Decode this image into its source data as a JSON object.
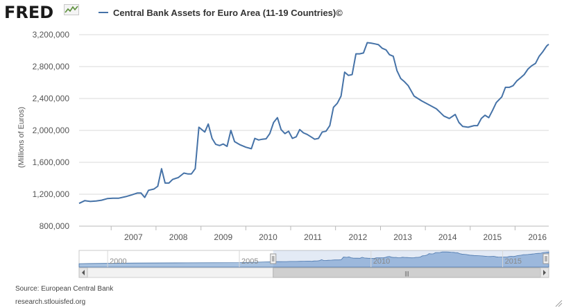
{
  "brand": {
    "logo_text": "FRED",
    "logo_icon": "fred-graph-icon"
  },
  "chart_data": {
    "type": "line",
    "title": "",
    "series": [
      {
        "name": "Central Bank Assets for Euro Area (11-19 Countries)©",
        "color": "#4572a7",
        "points": [
          [
            "2006-04-15",
            1085000
          ],
          [
            "2006-06-01",
            1120000
          ],
          [
            "2006-07-15",
            1110000
          ],
          [
            "2006-09-01",
            1115000
          ],
          [
            "2006-10-15",
            1125000
          ],
          [
            "2006-12-01",
            1145000
          ],
          [
            "2007-01-15",
            1150000
          ],
          [
            "2007-03-01",
            1150000
          ],
          [
            "2007-05-01",
            1170000
          ],
          [
            "2007-06-15",
            1190000
          ],
          [
            "2007-08-01",
            1215000
          ],
          [
            "2007-09-01",
            1215000
          ],
          [
            "2007-10-01",
            1160000
          ],
          [
            "2007-11-01",
            1250000
          ],
          [
            "2007-12-15",
            1265000
          ],
          [
            "2008-01-15",
            1300000
          ],
          [
            "2008-02-15",
            1520000
          ],
          [
            "2008-03-15",
            1340000
          ],
          [
            "2008-04-15",
            1340000
          ],
          [
            "2008-05-15",
            1385000
          ],
          [
            "2008-07-01",
            1410000
          ],
          [
            "2008-08-15",
            1465000
          ],
          [
            "2008-09-15",
            1455000
          ],
          [
            "2008-10-15",
            1455000
          ],
          [
            "2008-11-15",
            1520000
          ],
          [
            "2008-12-15",
            2040000
          ],
          [
            "2009-02-01",
            1980000
          ],
          [
            "2009-03-01",
            2080000
          ],
          [
            "2009-04-01",
            1900000
          ],
          [
            "2009-05-01",
            1825000
          ],
          [
            "2009-06-01",
            1810000
          ],
          [
            "2009-07-01",
            1830000
          ],
          [
            "2009-08-01",
            1800000
          ],
          [
            "2009-09-01",
            2000000
          ],
          [
            "2009-10-01",
            1860000
          ],
          [
            "2009-11-15",
            1820000
          ],
          [
            "2010-01-01",
            1790000
          ],
          [
            "2010-02-15",
            1770000
          ],
          [
            "2010-03-15",
            1900000
          ],
          [
            "2010-04-15",
            1880000
          ],
          [
            "2010-05-15",
            1890000
          ],
          [
            "2010-06-15",
            1895000
          ],
          [
            "2010-07-15",
            1960000
          ],
          [
            "2010-08-15",
            2100000
          ],
          [
            "2010-09-15",
            2160000
          ],
          [
            "2010-10-15",
            2010000
          ],
          [
            "2010-11-15",
            1960000
          ],
          [
            "2010-12-15",
            1990000
          ],
          [
            "2011-01-15",
            1900000
          ],
          [
            "2011-02-15",
            1920000
          ],
          [
            "2011-03-15",
            2010000
          ],
          [
            "2011-04-15",
            1970000
          ],
          [
            "2011-05-15",
            1950000
          ],
          [
            "2011-06-15",
            1920000
          ],
          [
            "2011-07-15",
            1890000
          ],
          [
            "2011-08-15",
            1900000
          ],
          [
            "2011-09-15",
            1980000
          ],
          [
            "2011-10-15",
            1990000
          ],
          [
            "2011-11-15",
            2060000
          ],
          [
            "2011-12-15",
            2290000
          ],
          [
            "2012-01-15",
            2340000
          ],
          [
            "2012-02-15",
            2430000
          ],
          [
            "2012-03-15",
            2730000
          ],
          [
            "2012-04-15",
            2690000
          ],
          [
            "2012-05-15",
            2700000
          ],
          [
            "2012-06-15",
            2960000
          ],
          [
            "2012-07-15",
            2960000
          ],
          [
            "2012-08-15",
            2970000
          ],
          [
            "2012-09-15",
            3100000
          ],
          [
            "2012-10-15",
            3095000
          ],
          [
            "2012-11-15",
            3085000
          ],
          [
            "2012-12-15",
            3075000
          ],
          [
            "2013-01-15",
            3030000
          ],
          [
            "2013-02-15",
            3010000
          ],
          [
            "2013-03-15",
            2950000
          ],
          [
            "2013-04-15",
            2930000
          ],
          [
            "2013-05-15",
            2750000
          ],
          [
            "2013-06-15",
            2650000
          ],
          [
            "2013-07-15",
            2610000
          ],
          [
            "2013-08-15",
            2560000
          ],
          [
            "2013-10-01",
            2430000
          ],
          [
            "2013-12-01",
            2370000
          ],
          [
            "2014-02-01",
            2320000
          ],
          [
            "2014-04-01",
            2270000
          ],
          [
            "2014-06-01",
            2180000
          ],
          [
            "2014-07-15",
            2150000
          ],
          [
            "2014-09-01",
            2200000
          ],
          [
            "2014-10-01",
            2100000
          ],
          [
            "2014-11-01",
            2050000
          ],
          [
            "2014-12-15",
            2040000
          ],
          [
            "2015-02-01",
            2060000
          ],
          [
            "2015-03-01",
            2060000
          ],
          [
            "2015-04-01",
            2150000
          ],
          [
            "2015-05-01",
            2190000
          ],
          [
            "2015-06-01",
            2160000
          ],
          [
            "2015-07-01",
            2250000
          ],
          [
            "2015-08-01",
            2350000
          ],
          [
            "2015-09-15",
            2420000
          ],
          [
            "2015-10-15",
            2540000
          ],
          [
            "2015-11-15",
            2540000
          ],
          [
            "2015-12-15",
            2560000
          ],
          [
            "2016-01-15",
            2620000
          ],
          [
            "2016-02-15",
            2660000
          ],
          [
            "2016-03-15",
            2700000
          ],
          [
            "2016-04-15",
            2770000
          ],
          [
            "2016-05-15",
            2810000
          ],
          [
            "2016-06-15",
            2840000
          ],
          [
            "2016-07-15",
            2930000
          ],
          [
            "2016-08-15",
            2990000
          ],
          [
            "2016-09-15",
            3060000
          ],
          [
            "2016-10-01",
            3080000
          ]
        ]
      }
    ],
    "x_range": [
      "2006-04-15",
      "2016-10-01"
    ],
    "x_ticks": [
      "2007",
      "2008",
      "2009",
      "2010",
      "2011",
      "2012",
      "2013",
      "2014",
      "2015",
      "2016"
    ],
    "ylim": [
      800000,
      3200000
    ],
    "y_ticks": [
      800000,
      1200000,
      1600000,
      2000000,
      2400000,
      2800000,
      3200000
    ],
    "y_tick_labels": [
      "800,000",
      "1,200,000",
      "1,600,000",
      "2,000,000",
      "2,400,000",
      "2,800,000",
      "3,200,000"
    ],
    "ylabel": "(Millions of Euros)",
    "xlabel": "",
    "grid": "horizontal",
    "legend": "top-left",
    "navigator": {
      "x_range": [
        "1998-12-01",
        "2016-10-01"
      ],
      "selected_range": [
        "2006-04-15",
        "2016-10-01"
      ],
      "tick_labels": [
        "2000",
        "2005",
        "2010",
        "2015"
      ],
      "scrollbar_grip": "|||"
    }
  },
  "footer": {
    "source": "Source: European Central Bank",
    "site": "research.stlouisfed.org"
  },
  "colors": {
    "line": "#4572a7",
    "grid": "#d8d8d8",
    "navigator_fill": "#a9c3e1",
    "navigator_mask": "rgba(100,140,200,0.18)"
  }
}
